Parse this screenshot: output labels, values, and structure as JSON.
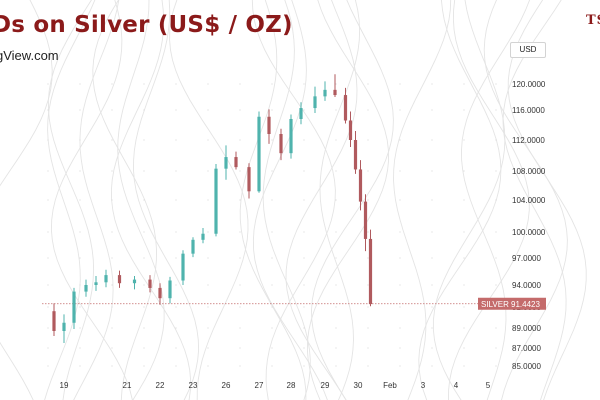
{
  "header": {
    "title": "Ds on Silver (US$ / OZ)",
    "subtitle": "gView.com",
    "brand": "TS"
  },
  "currency_label": "USD",
  "colors": {
    "title": "#8b1a1a",
    "up": "#4fb3ad",
    "down": "#b05a5e",
    "last_price_badge": "#c46b6b",
    "background_lines": "#e4e4e4"
  },
  "chart_data": {
    "type": "candlestick",
    "title": "",
    "symbol": "SILVER",
    "last_price": "91.4423",
    "y_ticks": [
      "85.0000",
      "87.0000",
      "89.0000",
      "91.0000",
      "94.0000",
      "97.0000",
      "100.0000",
      "104.0000",
      "108.0000",
      "112.0000",
      "116.0000",
      "120.0000"
    ],
    "x_ticks": [
      "19",
      "21",
      "22",
      "23",
      "26",
      "27",
      "28",
      "29",
      "30",
      "Feb",
      "3",
      "4",
      "5"
    ],
    "ylim": [
      85,
      122
    ],
    "series": [
      {
        "x": [
          "19",
          "19",
          "19",
          "20",
          "20",
          "20",
          "21",
          "21",
          "22",
          "22",
          "22",
          "23",
          "23",
          "23",
          "26",
          "26",
          "26",
          "27",
          "27",
          "27",
          "28",
          "28",
          "28",
          "29",
          "29",
          "29",
          "30",
          "30",
          "30",
          "30",
          "30",
          "30"
        ],
        "open": [
          90.6,
          88.7,
          89.5,
          93.1,
          94.0,
          94.3,
          95.1,
          94.2,
          94.6,
          93.6,
          92.2,
          94.5,
          97.5,
          99.1,
          99.8,
          108.3,
          109.8,
          108.5,
          105.2,
          115.1,
          112.8,
          110.3,
          114.8,
          116.3,
          118.1,
          119.1,
          118.3,
          114.6,
          112.0,
          108.2,
          103.8,
          99.2
        ],
        "close": [
          88.7,
          89.5,
          93.1,
          94.0,
          94.3,
          95.1,
          94.2,
          94.6,
          93.6,
          92.2,
          94.5,
          97.5,
          99.1,
          99.8,
          108.3,
          109.8,
          108.5,
          105.2,
          115.1,
          112.8,
          110.3,
          114.8,
          116.3,
          118.1,
          119.1,
          118.3,
          114.6,
          112.0,
          108.2,
          103.8,
          99.2,
          91.4
        ],
        "high": [
          91.5,
          90.3,
          93.6,
          94.6,
          95.0,
          95.7,
          95.6,
          95.0,
          95.1,
          94.2,
          94.9,
          97.9,
          99.4,
          100.5,
          108.9,
          111.3,
          110.5,
          109.0,
          115.8,
          116.1,
          113.5,
          115.4,
          117.2,
          119.6,
          120.4,
          121.5,
          119.4,
          115.8,
          113.2,
          109.4,
          104.8,
          100.3
        ],
        "low": [
          88.2,
          87.5,
          88.9,
          92.4,
          93.2,
          93.7,
          93.6,
          93.4,
          93.0,
          91.3,
          91.5,
          94.0,
          97.1,
          98.7,
          99.5,
          106.8,
          108.2,
          104.2,
          105.0,
          111.5,
          109.4,
          109.6,
          114.1,
          115.6,
          117.4,
          118.0,
          114.2,
          111.1,
          107.6,
          102.7,
          97.8,
          91.1
        ]
      }
    ]
  }
}
